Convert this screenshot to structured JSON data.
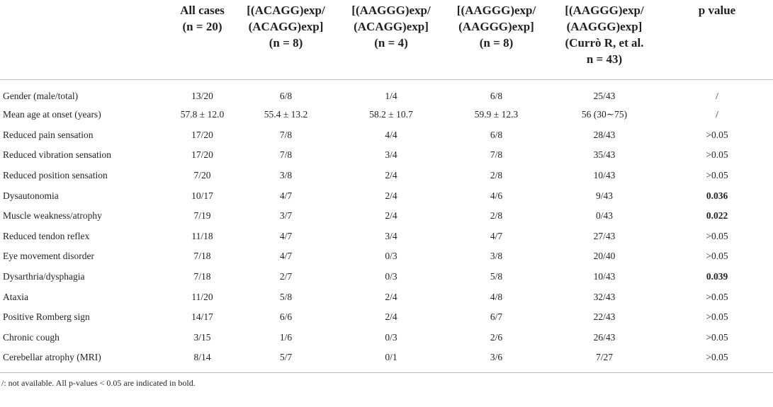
{
  "header": {
    "col0": "",
    "col1": [
      "All cases",
      "(n = 20)"
    ],
    "col2": [
      "[(ACAGG)exp/",
      "(ACAGG)exp]",
      "(n = 8)"
    ],
    "col3": [
      "[(AAGGG)exp/",
      "(ACAGG)exp]",
      "(n = 4)"
    ],
    "col4": [
      "[(AAGGG)exp/",
      "(AAGGG)exp]",
      "(n = 8)"
    ],
    "col5": [
      "[(AAGGG)exp/",
      "(AAGGG)exp]",
      "(Currò R, et al.",
      "n = 43)"
    ],
    "col6": [
      "p value"
    ]
  },
  "rows": [
    {
      "label": "Gender (male/total)",
      "c1": "13/20",
      "c2": "6/8",
      "c3": "1/4",
      "c4": "6/8",
      "c5": "25/43",
      "p": "/",
      "bold": false
    },
    {
      "label": "Mean age at onset (years)",
      "c1": "57.8 ± 12.0",
      "c2": "55.4 ± 13.2",
      "c3": "58.2 ± 10.7",
      "c4": "59.9 ± 12.3",
      "c5": "56 (30∼75)",
      "p": "/",
      "bold": false
    },
    {
      "label": "Reduced pain sensation",
      "c1": "17/20",
      "c2": "7/8",
      "c3": "4/4",
      "c4": "6/8",
      "c5": "28/43",
      "p": ">0.05",
      "bold": false
    },
    {
      "label": "Reduced vibration sensation",
      "c1": "17/20",
      "c2": "7/8",
      "c3": "3/4",
      "c4": "7/8",
      "c5": "35/43",
      "p": ">0.05",
      "bold": false
    },
    {
      "label": "Reduced position sensation",
      "c1": "7/20",
      "c2": "3/8",
      "c3": "2/4",
      "c4": "2/8",
      "c5": "10/43",
      "p": ">0.05",
      "bold": false
    },
    {
      "label": "Dysautonomia",
      "c1": "10/17",
      "c2": "4/7",
      "c3": "2/4",
      "c4": "4/6",
      "c5": "9/43",
      "p": "0.036",
      "bold": true
    },
    {
      "label": "Muscle weakness/atrophy",
      "c1": "7/19",
      "c2": "3/7",
      "c3": "2/4",
      "c4": "2/8",
      "c5": "0/43",
      "p": "0.022",
      "bold": true
    },
    {
      "label": "Reduced tendon reflex",
      "c1": "11/18",
      "c2": "4/7",
      "c3": "3/4",
      "c4": "4/7",
      "c5": "27/43",
      "p": ">0.05",
      "bold": false
    },
    {
      "label": "Eye movement disorder",
      "c1": "7/18",
      "c2": "4/7",
      "c3": "0/3",
      "c4": "3/8",
      "c5": "20/40",
      "p": ">0.05",
      "bold": false
    },
    {
      "label": "Dysarthria/dysphagia",
      "c1": "7/18",
      "c2": "2/7",
      "c3": "0/3",
      "c4": "5/8",
      "c5": "10/43",
      "p": "0.039",
      "bold": true
    },
    {
      "label": "Ataxia",
      "c1": "11/20",
      "c2": "5/8",
      "c3": "2/4",
      "c4": "4/8",
      "c5": "32/43",
      "p": ">0.05",
      "bold": false
    },
    {
      "label": "Positive Romberg sign",
      "c1": "14/17",
      "c2": "6/6",
      "c3": "2/4",
      "c4": "6/7",
      "c5": "22/43",
      "p": ">0.05",
      "bold": false
    },
    {
      "label": "Chronic cough",
      "c1": "3/15",
      "c2": "1/6",
      "c3": "0/3",
      "c4": "2/6",
      "c5": "26/43",
      "p": ">0.05",
      "bold": false
    },
    {
      "label": "Cerebellar atrophy (MRI)",
      "c1": "8/14",
      "c2": "5/7",
      "c3": "0/1",
      "c4": "3/6",
      "c5": "7/27",
      "p": ">0.05",
      "bold": false
    }
  ],
  "footnote": "/: not available. All p-values < 0.05 are indicated in bold."
}
